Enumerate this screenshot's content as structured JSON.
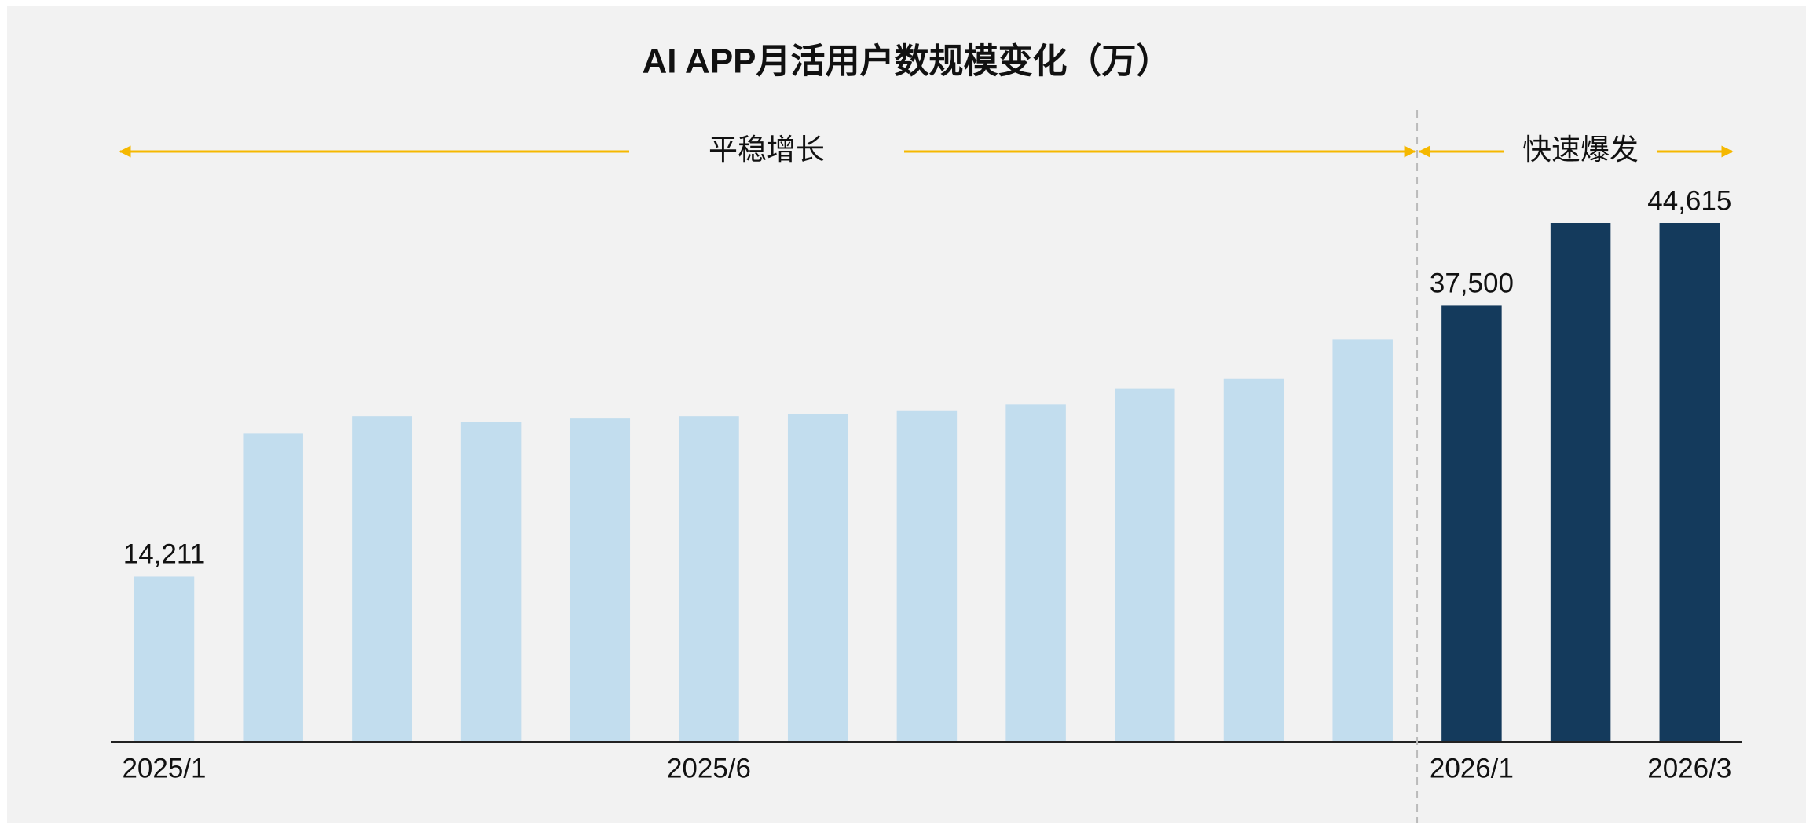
{
  "chart_data": {
    "type": "bar",
    "title": "AI APP月活用户数规模变化（万）",
    "categories": [
      "2025/1",
      null,
      null,
      null,
      null,
      "2025/6",
      null,
      null,
      null,
      null,
      null,
      null,
      "2026/1",
      null,
      "2026/3"
    ],
    "values": [
      14211,
      26500,
      28000,
      27500,
      27800,
      28000,
      28200,
      28500,
      29000,
      30400,
      31200,
      34600,
      37500,
      44615,
      44615
    ],
    "value_labels": [
      "14,211",
      null,
      null,
      null,
      null,
      null,
      null,
      null,
      null,
      null,
      null,
      null,
      "37,500",
      null,
      "44,615"
    ],
    "colors": [
      "#c2ddee",
      "#c2ddee",
      "#c2ddee",
      "#c2ddee",
      "#c2ddee",
      "#c2ddee",
      "#c2ddee",
      "#c2ddee",
      "#c2ddee",
      "#c2ddee",
      "#c2ddee",
      "#c2ddee",
      "#143a5c",
      "#143a5c",
      "#143a5c"
    ],
    "phases": [
      {
        "label": "平稳增长"
      },
      {
        "label": "快速爆发"
      }
    ],
    "phase_arrow_color": "#f5b800"
  }
}
